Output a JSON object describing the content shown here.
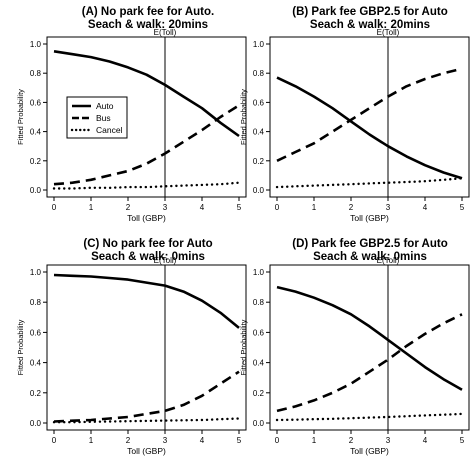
{
  "chart_data": [
    {
      "type": "line",
      "title_line1": "(A) No park fee for Auto.",
      "title_line2": "Seach & walk: 20mins",
      "xlabel": "Toll (GBP)",
      "ylabel": "Fitted Probability",
      "xlim": [
        0,
        5
      ],
      "ylim": [
        0,
        1
      ],
      "x_ticks": [
        "0",
        "1",
        "2",
        "3",
        "4",
        "5"
      ],
      "y_ticks": [
        "0.0",
        "0.2",
        "0.4",
        "0.6",
        "0.8",
        "1.0"
      ],
      "vline": {
        "x": 3,
        "label": "E(Toll)"
      },
      "legend": {
        "position": "left",
        "entries": [
          "Auto",
          "Bus",
          "Cancel"
        ]
      },
      "x": [
        0,
        0.5,
        1,
        1.5,
        2,
        2.5,
        3,
        3.5,
        4,
        4.5,
        5
      ],
      "series": [
        {
          "name": "Auto",
          "style": "solid",
          "values": [
            0.95,
            0.93,
            0.91,
            0.88,
            0.84,
            0.79,
            0.72,
            0.64,
            0.56,
            0.46,
            0.37
          ]
        },
        {
          "name": "Bus",
          "style": "dashed",
          "values": [
            0.04,
            0.05,
            0.07,
            0.1,
            0.13,
            0.18,
            0.25,
            0.33,
            0.41,
            0.5,
            0.58
          ]
        },
        {
          "name": "Cancel",
          "style": "dotted",
          "values": [
            0.01,
            0.01,
            0.015,
            0.015,
            0.02,
            0.02,
            0.025,
            0.03,
            0.035,
            0.04,
            0.05
          ]
        }
      ]
    },
    {
      "type": "line",
      "title_line1": "(B) Park fee GBP2.5 for Auto",
      "title_line2": "Seach & walk: 20mins",
      "xlabel": "Toll (GBP)",
      "ylabel": "Fitted Probability",
      "xlim": [
        0,
        5
      ],
      "ylim": [
        0,
        1
      ],
      "x_ticks": [
        "0",
        "1",
        "2",
        "3",
        "4",
        "5"
      ],
      "y_ticks": [
        "0.0",
        "0.2",
        "0.4",
        "0.6",
        "0.8",
        "1.0"
      ],
      "vline": {
        "x": 3,
        "label": "E(Toll)"
      },
      "x": [
        0,
        0.5,
        1,
        1.5,
        2,
        2.5,
        3,
        3.5,
        4,
        4.5,
        5
      ],
      "series": [
        {
          "name": "Auto",
          "style": "solid",
          "values": [
            0.77,
            0.71,
            0.64,
            0.56,
            0.47,
            0.38,
            0.3,
            0.23,
            0.17,
            0.12,
            0.08
          ]
        },
        {
          "name": "Bus",
          "style": "dashed",
          "values": [
            0.2,
            0.26,
            0.32,
            0.4,
            0.48,
            0.56,
            0.64,
            0.71,
            0.76,
            0.8,
            0.83
          ]
        },
        {
          "name": "Cancel",
          "style": "dotted",
          "values": [
            0.02,
            0.025,
            0.03,
            0.035,
            0.04,
            0.045,
            0.05,
            0.055,
            0.06,
            0.07,
            0.08
          ]
        }
      ]
    },
    {
      "type": "line",
      "title_line1": "(C) No park fee for Auto",
      "title_line2": "Seach & walk: 0mins",
      "xlabel": "Toll (GBP)",
      "ylabel": "Fitted Probability",
      "xlim": [
        0,
        5
      ],
      "ylim": [
        0,
        1
      ],
      "x_ticks": [
        "0",
        "1",
        "2",
        "3",
        "4",
        "5"
      ],
      "y_ticks": [
        "0.0",
        "0.2",
        "0.4",
        "0.6",
        "0.8",
        "1.0"
      ],
      "vline": {
        "x": 3,
        "label": "E(Toll)"
      },
      "x": [
        0,
        0.5,
        1,
        1.5,
        2,
        2.5,
        3,
        3.5,
        4,
        4.5,
        5
      ],
      "series": [
        {
          "name": "Auto",
          "style": "solid",
          "values": [
            0.98,
            0.975,
            0.97,
            0.96,
            0.95,
            0.93,
            0.91,
            0.87,
            0.81,
            0.73,
            0.63
          ]
        },
        {
          "name": "Bus",
          "style": "dashed",
          "values": [
            0.01,
            0.015,
            0.02,
            0.03,
            0.04,
            0.06,
            0.08,
            0.12,
            0.18,
            0.26,
            0.34
          ]
        },
        {
          "name": "Cancel",
          "style": "dotted",
          "values": [
            0.005,
            0.005,
            0.008,
            0.01,
            0.012,
            0.014,
            0.016,
            0.018,
            0.02,
            0.025,
            0.03
          ]
        }
      ]
    },
    {
      "type": "line",
      "title_line1": "(D) Park fee GBP2.5 for Auto",
      "title_line2": "Seach & walk: 0mins",
      "xlabel": "Toll (GBP)",
      "ylabel": "Fitted Probability",
      "xlim": [
        0,
        5
      ],
      "ylim": [
        0,
        1
      ],
      "x_ticks": [
        "0",
        "1",
        "2",
        "3",
        "4",
        "5"
      ],
      "y_ticks": [
        "0.0",
        "0.2",
        "0.4",
        "0.6",
        "0.8",
        "1.0"
      ],
      "vline": {
        "x": 3,
        "label": "E(Toll)"
      },
      "x": [
        0,
        0.5,
        1,
        1.5,
        2,
        2.5,
        3,
        3.5,
        4,
        4.5,
        5
      ],
      "series": [
        {
          "name": "Auto",
          "style": "solid",
          "values": [
            0.9,
            0.87,
            0.83,
            0.78,
            0.72,
            0.64,
            0.55,
            0.46,
            0.37,
            0.29,
            0.22
          ]
        },
        {
          "name": "Bus",
          "style": "dashed",
          "values": [
            0.08,
            0.11,
            0.15,
            0.2,
            0.26,
            0.34,
            0.42,
            0.51,
            0.59,
            0.66,
            0.72
          ]
        },
        {
          "name": "Cancel",
          "style": "dotted",
          "values": [
            0.02,
            0.022,
            0.025,
            0.028,
            0.032,
            0.036,
            0.04,
            0.045,
            0.05,
            0.055,
            0.06
          ]
        }
      ]
    }
  ]
}
